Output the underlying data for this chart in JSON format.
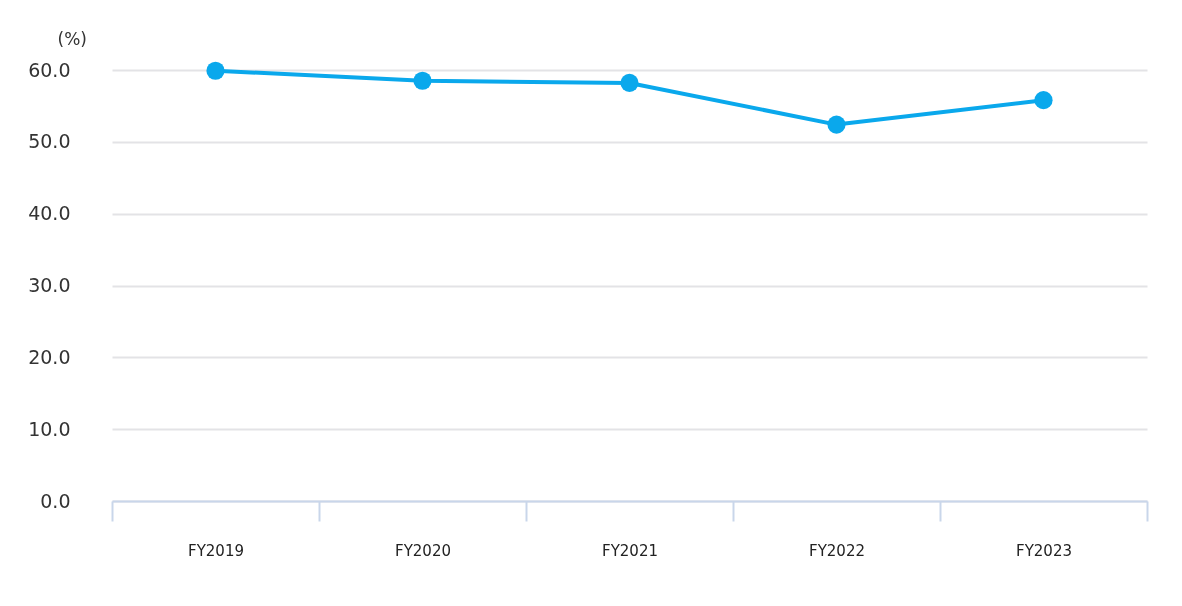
{
  "chart_data": {
    "type": "line",
    "ylabel": "(%)",
    "categories": [
      "FY2019",
      "FY2020",
      "FY2021",
      "FY2022",
      "FY2023"
    ],
    "series": [
      {
        "color": "#0aa8ec",
        "values": [
          59.9,
          58.5,
          58.2,
          52.4,
          55.8
        ]
      }
    ],
    "ylim": [
      0,
      60
    ],
    "yticks": [
      {
        "value": 0,
        "label": "0.0"
      },
      {
        "value": 10,
        "label": "10.0"
      },
      {
        "value": 20,
        "label": "20.0"
      },
      {
        "value": 30,
        "label": "30.0"
      },
      {
        "value": 40,
        "label": "40.0"
      },
      {
        "value": 50,
        "label": "50.0"
      },
      {
        "value": 60,
        "label": "60.0"
      }
    ],
    "grid": "y",
    "marker": "circle",
    "legend": false
  }
}
